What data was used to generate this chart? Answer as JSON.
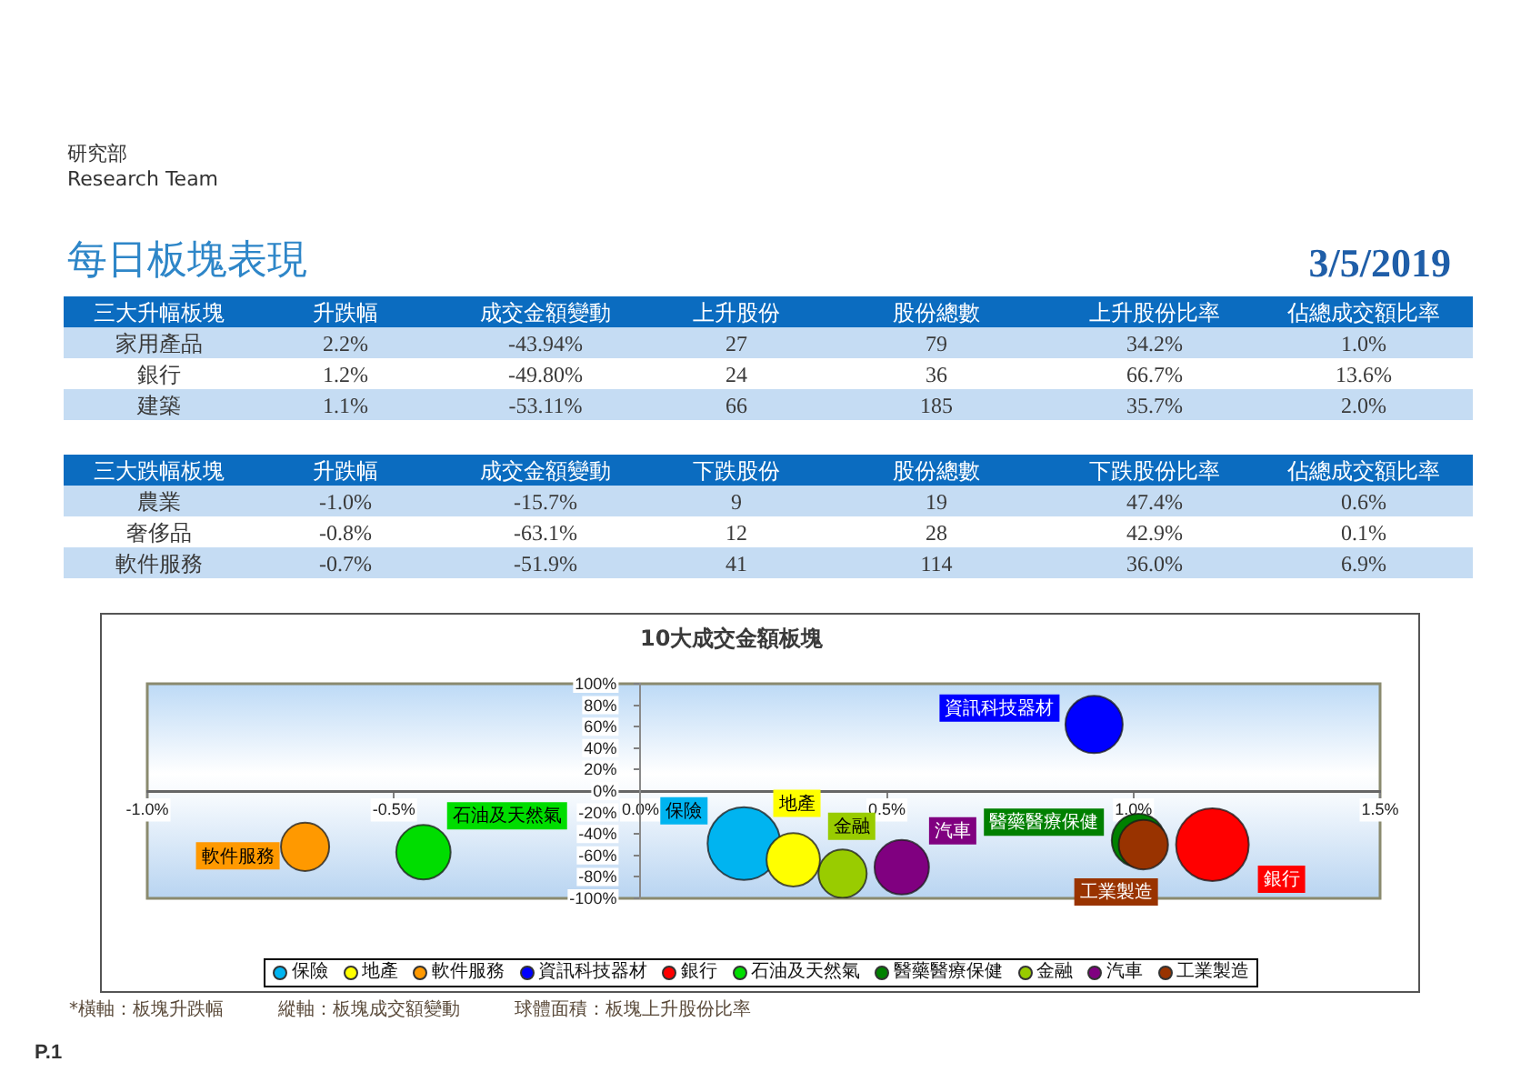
{
  "chart_data": [
    {
      "type": "other",
      "title": "每日板塊表現",
      "subtitle": "3/5/2019",
      "annotations": [
        "研究部",
        "Research Team"
      ],
      "categories": [
        "三大升幅板塊",
        "升跌幅",
        "成交金額變動",
        "上升股份",
        "股份總數",
        "上升股份比率",
        "佔總成交額比率"
      ],
      "y_categories": [
        "家用產品",
        "銀行",
        "建築"
      ],
      "cell_labels": [
        [
          "2.2%",
          "-43.94%",
          "27",
          "79",
          "34.2%",
          "1.0%"
        ],
        [
          "1.2%",
          "-49.80%",
          "24",
          "36",
          "66.7%",
          "13.6%"
        ],
        [
          "1.1%",
          "-53.11%",
          "66",
          "185",
          "35.7%",
          "2.0%"
        ]
      ]
    },
    {
      "type": "other",
      "categories": [
        "三大跌幅板塊",
        "升跌幅",
        "成交金額變動",
        "下跌股份",
        "股份總數",
        "下跌股份比率",
        "佔總成交額比率"
      ],
      "y_categories": [
        "農業",
        "奢侈品",
        "軟件服務"
      ],
      "cell_labels": [
        [
          "-1.0%",
          "-15.7%",
          "9",
          "19",
          "47.4%",
          "0.6%"
        ],
        [
          "-0.8%",
          "-63.1%",
          "12",
          "28",
          "42.9%",
          "0.1%"
        ],
        [
          "-0.7%",
          "-51.9%",
          "41",
          "114",
          "36.0%",
          "6.9%"
        ]
      ]
    },
    {
      "type": "bubble",
      "title": "10大成交金額板塊",
      "xlim": [
        -1.0,
        1.5
      ],
      "xticks": [
        {
          "value": -1.0,
          "label": "-1.0%"
        },
        {
          "value": -0.5,
          "label": "-0.5%"
        },
        {
          "value": 0,
          "label": "0.0%"
        },
        {
          "value": 0.5,
          "label": "0.5%"
        },
        {
          "value": 1.0,
          "label": "1.0%"
        },
        {
          "value": 1.5,
          "label": "1.5%"
        }
      ],
      "ylim": [
        -100,
        100
      ],
      "yticks": [
        {
          "value": 100,
          "label": "100%"
        },
        {
          "value": 80,
          "label": "80%"
        },
        {
          "value": 60,
          "label": "60%"
        },
        {
          "value": 40,
          "label": "40%"
        },
        {
          "value": 20,
          "label": "20%"
        },
        {
          "value": 0,
          "label": "0%"
        },
        {
          "value": -20,
          "label": "-20%"
        },
        {
          "value": -40,
          "label": "-40%"
        },
        {
          "value": -60,
          "label": "-60%"
        },
        {
          "value": -80,
          "label": "-80%"
        },
        {
          "value": -100,
          "label": "-100%"
        }
      ],
      "grid": false,
      "legend": "bottom",
      "series": [
        {
          "name": "保險",
          "color": "#00b4f0",
          "x": [
            0.21
          ],
          "values": [
            -49
          ],
          "sizes": [
            1
          ]
        },
        {
          "name": "地產",
          "color": "#ffff00",
          "x": [
            0.31
          ],
          "values": [
            -64
          ],
          "sizes": [
            0.54
          ]
        },
        {
          "name": "軟件服務",
          "color": "#ff9900",
          "x": [
            -0.68
          ],
          "values": [
            -52
          ],
          "sizes": [
            0.44
          ]
        },
        {
          "name": "資訊科技器材",
          "color": "#0000ff",
          "x": [
            0.92
          ],
          "values": [
            62
          ],
          "sizes": [
            0.62
          ]
        },
        {
          "name": "銀行",
          "color": "#ff0000",
          "x": [
            1.16
          ],
          "values": [
            -50
          ],
          "sizes": [
            1
          ]
        },
        {
          "name": "石油及天然氣",
          "color": "#00dd00",
          "x": [
            -0.44
          ],
          "values": [
            -57
          ],
          "sizes": [
            0.56
          ]
        },
        {
          "name": "醫藥醫療保健",
          "color": "#008000",
          "x": [
            1.01
          ],
          "values": [
            -46
          ],
          "sizes": [
            0.54
          ]
        },
        {
          "name": "金融",
          "color": "#99cc00",
          "x": [
            0.41
          ],
          "values": [
            -77
          ],
          "sizes": [
            0.44
          ]
        },
        {
          "name": "汽車",
          "color": "#800080",
          "x": [
            0.53
          ],
          "values": [
            -71
          ],
          "sizes": [
            0.56
          ]
        },
        {
          "name": "工業製造",
          "color": "#993300",
          "x": [
            1.02
          ],
          "values": [
            -50
          ],
          "sizes": [
            0.46
          ]
        }
      ],
      "annotations": [
        "*橫軸：板塊升跌幅",
        "縱軸：板塊成交額變動",
        "球體面積：板塊上升股份比率",
        "P.1"
      ]
    }
  ]
}
